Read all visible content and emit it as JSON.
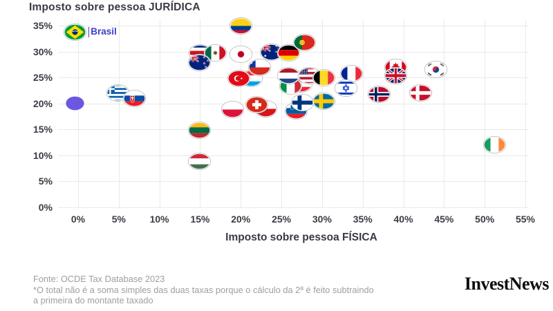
{
  "title": "Imposto sobre pessoa JURÍDICA",
  "x_axis_label": "Imposto sobre pessoa FÍSICA",
  "annotation_label": "Brasil",
  "footer": {
    "source": "Fonte: OCDE Tax Database 2023",
    "note_line1": "*O total não é a soma simples das duas taxas porque o cálculo da 2ª é feito subtraindo",
    "note_line2": "a primeira do montante taxado"
  },
  "logo_text": "InvestNews",
  "colors": {
    "annotation": "#3d3dc6",
    "dot": "#6b57e0",
    "grid": "#e9e9e9",
    "axis_text": "#3b3b46",
    "footer_text": "#9e9e9e"
  },
  "chart_data": {
    "type": "scatter",
    "title": "Imposto sobre pessoa JURÍDICA",
    "xlabel": "Imposto sobre pessoa FÍSICA",
    "ylabel": "Imposto sobre pessoa JURÍDICA",
    "x_ticks": [
      "0%",
      "5%",
      "10%",
      "15%",
      "20%",
      "25%",
      "30%",
      "35%",
      "40%",
      "45%",
      "50%",
      "55%"
    ],
    "y_ticks": [
      "0%",
      "5%",
      "10%",
      "15%",
      "20%",
      "25%",
      "30%",
      "35%"
    ],
    "xlim": [
      0,
      55
    ],
    "ylim": [
      0,
      35
    ],
    "grid": true,
    "units": "percent",
    "marker_style": "country-flag-ellipse",
    "points": [
      {
        "country": "não identificado (ponto roxo)",
        "flag": "dot",
        "x": -0.4,
        "y": 20
      },
      {
        "country": "Brasil",
        "flag": "br",
        "x": -0.4,
        "y": 33.8,
        "label": "Brasil"
      },
      {
        "country": "Grécia",
        "flag": "gr",
        "x": 4.9,
        "y": 22
      },
      {
        "country": "Eslováquia",
        "flag": "sk",
        "x": 6.9,
        "y": 20.9
      },
      {
        "country": "Costa Rica",
        "flag": "cr",
        "x": 15,
        "y": 29.8
      },
      {
        "country": "México",
        "flag": "mx",
        "x": 16.9,
        "y": 29.7
      },
      {
        "country": "Nova Zelândia",
        "flag": "nz",
        "x": 14.9,
        "y": 27.9
      },
      {
        "country": "Colômbia",
        "flag": "co",
        "x": 20,
        "y": 34.9
      },
      {
        "country": "Japão",
        "flag": "jp",
        "x": 20,
        "y": 29.5
      },
      {
        "country": "Luxemburgo",
        "flag": "lu",
        "x": 21.3,
        "y": 24.8
      },
      {
        "country": "Turquia",
        "flag": "tr",
        "x": 19.8,
        "y": 24.8
      },
      {
        "country": "Chile",
        "flag": "cl",
        "x": 22.3,
        "y": 26.9
      },
      {
        "country": "Austrália",
        "flag": "au",
        "x": 23.8,
        "y": 29.9
      },
      {
        "country": "Alemanha",
        "flag": "de",
        "x": 25.9,
        "y": 29.7
      },
      {
        "country": "Portugal",
        "flag": "pt",
        "x": 27.8,
        "y": 31.7
      },
      {
        "country": "Polônia",
        "flag": "pl",
        "x": 19,
        "y": 18.8
      },
      {
        "country": "Tchéquia",
        "flag": "cz",
        "x": 23.1,
        "y": 18.9
      },
      {
        "country": "Suíça",
        "flag": "ch",
        "x": 22,
        "y": 19.7
      },
      {
        "country": "Eslovênia",
        "flag": "si",
        "x": 26.8,
        "y": 18.6
      },
      {
        "country": "Finlândia",
        "flag": "fi",
        "x": 27.6,
        "y": 20.2
      },
      {
        "country": "Suécia",
        "flag": "se",
        "x": 30.2,
        "y": 20.4
      },
      {
        "country": "Áustria",
        "flag": "at",
        "x": 27.4,
        "y": 23.8
      },
      {
        "country": "Itália",
        "flag": "it",
        "x": 26.1,
        "y": 23.3
      },
      {
        "country": "Países Baixos",
        "flag": "nl",
        "x": 25.9,
        "y": 25.3
      },
      {
        "country": "Estados Unidos",
        "flag": "us",
        "x": 28.4,
        "y": 25.3
      },
      {
        "country": "Bélgica",
        "flag": "be",
        "x": 30.2,
        "y": 24.9
      },
      {
        "country": "França",
        "flag": "fr",
        "x": 33.6,
        "y": 25.7
      },
      {
        "country": "Israel",
        "flag": "il",
        "x": 32.9,
        "y": 22.9
      },
      {
        "country": "Noruega",
        "flag": "no",
        "x": 37,
        "y": 21.8
      },
      {
        "country": "Dinamarca",
        "flag": "dk",
        "x": 42.1,
        "y": 22
      },
      {
        "country": "Canadá",
        "flag": "ca",
        "x": 39.1,
        "y": 26.9
      },
      {
        "country": "Reino Unido",
        "flag": "gb",
        "x": 39.1,
        "y": 25.3
      },
      {
        "country": "Coreia do Sul",
        "flag": "kr",
        "x": 44,
        "y": 26.5
      },
      {
        "country": "Hungria",
        "flag": "hu",
        "x": 14.9,
        "y": 8.9
      },
      {
        "country": "Lituânia",
        "flag": "lt",
        "x": 14.9,
        "y": 14.9
      },
      {
        "country": "Irlanda",
        "flag": "ie",
        "x": 51.2,
        "y": 12.1
      }
    ]
  }
}
